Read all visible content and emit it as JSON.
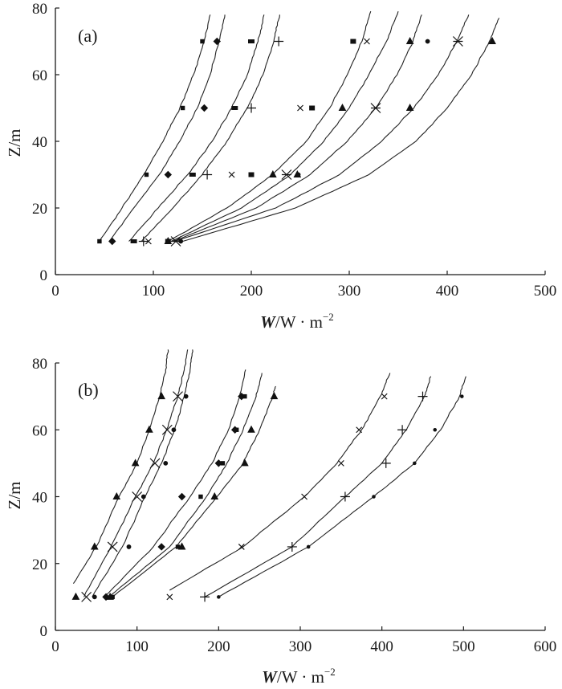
{
  "chart_data": [
    {
      "type": "line",
      "panel_label": "(a)",
      "xlabel_var": "W",
      "xlabel_unit": "/W · m",
      "xlabel_exp": "−2",
      "ylabel": "Z/m",
      "xlim": [
        0,
        500
      ],
      "ylim": [
        0,
        80
      ],
      "xticks": [
        "0",
        "100",
        "200",
        "300",
        "400",
        "500"
      ],
      "yticks": [
        "0",
        "20",
        "40",
        "60",
        "80"
      ],
      "series": [
        {
          "marker": "square-small",
          "points": [
            [
              45,
              10
            ],
            [
              93,
              30
            ],
            [
              130,
              50
            ],
            [
              150,
              70
            ]
          ],
          "curve": [
            [
              45,
              10
            ],
            [
              68,
              20
            ],
            [
              90,
              30
            ],
            [
              110,
              40
            ],
            [
              127,
              50
            ],
            [
              141,
              60
            ],
            [
              152,
              70
            ],
            [
              158,
              78
            ]
          ]
        },
        {
          "marker": "diamond",
          "points": [
            [
              58,
              10
            ],
            [
              115,
              30
            ],
            [
              152,
              50
            ],
            [
              165,
              70
            ]
          ],
          "curve": [
            [
              55,
              10
            ],
            [
              80,
              20
            ],
            [
              106,
              30
            ],
            [
              127,
              40
            ],
            [
              145,
              50
            ],
            [
              158,
              60
            ],
            [
              167,
              70
            ],
            [
              173,
              78
            ]
          ]
        },
        {
          "marker": "dash",
          "points": [
            [
              80,
              10
            ],
            [
              140,
              30
            ],
            [
              183,
              50
            ],
            [
              200,
              70
            ]
          ],
          "curve": [
            [
              75,
              10
            ],
            [
              105,
              20
            ],
            [
              135,
              30
            ],
            [
              160,
              40
            ],
            [
              180,
              50
            ],
            [
              196,
              60
            ],
            [
              207,
              70
            ],
            [
              213,
              78
            ]
          ]
        },
        {
          "marker": "plus",
          "points": [
            [
              90,
              10
            ],
            [
              155,
              30
            ],
            [
              200,
              50
            ],
            [
              228,
              70
            ]
          ],
          "curve": [
            [
              88,
              10
            ],
            [
              120,
              20
            ],
            [
              150,
              30
            ],
            [
              175,
              40
            ],
            [
              196,
              50
            ],
            [
              212,
              60
            ],
            [
              223,
              70
            ],
            [
              229,
              78
            ]
          ]
        },
        {
          "marker": "x-small",
          "points": [
            [
              95,
              10
            ],
            [
              180,
              30
            ],
            [
              250,
              50
            ],
            [
              318,
              70
            ]
          ],
          "curve": [
            [
              115,
              10
            ],
            [
              175,
              20
            ],
            [
              222,
              30
            ],
            [
              256,
              40
            ],
            [
              280,
              50
            ],
            [
              298,
              60
            ],
            [
              313,
              70
            ],
            [
              322,
              79
            ]
          ]
        },
        {
          "marker": "square-med",
          "points": [
            [
              115,
              10
            ],
            [
              200,
              30
            ],
            [
              262,
              50
            ],
            [
              304,
              70
            ]
          ],
          "curve": [
            [
              118,
              10
            ],
            [
              190,
              20
            ],
            [
              240,
              30
            ],
            [
              274,
              40
            ],
            [
              300,
              50
            ],
            [
              320,
              60
            ],
            [
              338,
              70
            ],
            [
              350,
              79
            ]
          ]
        },
        {
          "marker": "triangle",
          "points": [
            [
              115,
              10
            ],
            [
              222,
              30
            ],
            [
              293,
              50
            ],
            [
              362,
              50
            ],
            [
              362,
              70
            ],
            [
              446,
              70
            ],
            [
              247,
              30
            ]
          ],
          "curve": [
            [
              120,
              10
            ],
            [
              205,
              20
            ],
            [
              260,
              30
            ],
            [
              298,
              40
            ],
            [
              327,
              50
            ],
            [
              349,
              60
            ],
            [
              365,
              70
            ],
            [
              374,
              78
            ]
          ]
        },
        {
          "marker": "asterisk",
          "points": [
            [
              123,
              10
            ],
            [
              236,
              30
            ],
            [
              327,
              50
            ],
            [
              411,
              70
            ]
          ],
          "curve": [
            [
              122,
              10
            ],
            [
              225,
              20
            ],
            [
              290,
              30
            ],
            [
              333,
              40
            ],
            [
              366,
              50
            ],
            [
              391,
              60
            ],
            [
              410,
              70
            ],
            [
              422,
              78
            ]
          ]
        },
        {
          "marker": "dot",
          "points": [
            [
              128,
              10
            ],
            [
              248,
              30
            ],
            [
              380,
              70
            ]
          ],
          "curve": [
            [
              130,
              10
            ],
            [
              245,
              20
            ],
            [
              320,
              30
            ],
            [
              368,
              40
            ],
            [
              400,
              50
            ],
            [
              425,
              60
            ],
            [
              443,
              70
            ],
            [
              453,
              77
            ]
          ]
        }
      ]
    },
    {
      "type": "line",
      "panel_label": "(b)",
      "xlabel_var": "W",
      "xlabel_unit": "/W · m",
      "xlabel_exp": "−2",
      "ylabel": "Z/m",
      "xlim": [
        0,
        600
      ],
      "ylim": [
        0,
        80
      ],
      "xticks": [
        "0",
        "100",
        "200",
        "300",
        "400",
        "500",
        "600"
      ],
      "yticks": [
        "0",
        "20",
        "40",
        "60",
        "80"
      ],
      "series": [
        {
          "marker": "triangle",
          "points": [
            [
              25,
              10
            ],
            [
              48,
              25
            ],
            [
              75,
              40
            ],
            [
              98,
              50
            ],
            [
              115,
              60
            ],
            [
              130,
              70
            ]
          ],
          "curve": [
            [
              22,
              14
            ],
            [
              50,
              25
            ],
            [
              78,
              40
            ],
            [
              100,
              50
            ],
            [
              115,
              60
            ],
            [
              128,
              70
            ],
            [
              135,
              78
            ],
            [
              138,
              84
            ]
          ]
        },
        {
          "marker": "x-large",
          "points": [
            [
              38,
              10
            ],
            [
              70,
              25
            ],
            [
              100,
              40
            ],
            [
              122,
              50
            ],
            [
              137,
              60
            ],
            [
              150,
              70
            ]
          ],
          "curve": [
            [
              35,
              10
            ],
            [
              68,
              25
            ],
            [
              98,
              40
            ],
            [
              120,
              50
            ],
            [
              136,
              60
            ],
            [
              150,
              70
            ],
            [
              158,
              78
            ],
            [
              162,
              84
            ]
          ]
        },
        {
          "marker": "dot",
          "points": [
            [
              48,
              10
            ],
            [
              90,
              25
            ],
            [
              108,
              40
            ],
            [
              135,
              50
            ],
            [
              145,
              60
            ],
            [
              160,
              70
            ]
          ],
          "curve": [
            [
              45,
              10
            ],
            [
              82,
              25
            ],
            [
              110,
              40
            ],
            [
              130,
              50
            ],
            [
              146,
              60
            ],
            [
              158,
              70
            ],
            [
              165,
              78
            ],
            [
              168,
              84
            ]
          ]
        },
        {
          "marker": "diamond",
          "points": [
            [
              62,
              10
            ],
            [
              130,
              25
            ],
            [
              155,
              40
            ],
            [
              200,
              50
            ],
            [
              220,
              60
            ],
            [
              228,
              70
            ]
          ],
          "curve": [
            [
              60,
              10
            ],
            [
              120,
              25
            ],
            [
              165,
              40
            ],
            [
              192,
              50
            ],
            [
              212,
              60
            ],
            [
              226,
              70
            ],
            [
              233,
              78
            ]
          ]
        },
        {
          "marker": "square-small",
          "points": [
            [
              70,
              10
            ],
            [
              150,
              25
            ],
            [
              178,
              40
            ],
            [
              205,
              50
            ],
            [
              222,
              60
            ],
            [
              232,
              70
            ]
          ],
          "curve": [
            [
              65,
              10
            ],
            [
              140,
              25
            ],
            [
              185,
              40
            ],
            [
              210,
              50
            ],
            [
              230,
              60
            ],
            [
              246,
              70
            ],
            [
              253,
              77
            ]
          ]
        },
        {
          "marker": "triangle-b",
          "points": [
            [
              67,
              10
            ],
            [
              155,
              25
            ],
            [
              195,
              40
            ],
            [
              232,
              50
            ],
            [
              240,
              60
            ],
            [
              268,
              70
            ]
          ],
          "curve": [
            [
              70,
              10
            ],
            [
              148,
              25
            ],
            [
              198,
              40
            ],
            [
              230,
              50
            ],
            [
              250,
              60
            ],
            [
              266,
              70
            ],
            [
              270,
              73
            ]
          ]
        },
        {
          "marker": "x-small",
          "points": [
            [
              140,
              10
            ],
            [
              228,
              25
            ],
            [
              305,
              40
            ],
            [
              350,
              50
            ],
            [
              372,
              60
            ],
            [
              403,
              70
            ]
          ],
          "curve": [
            [
              140,
              12
            ],
            [
              230,
              25
            ],
            [
              305,
              40
            ],
            [
              345,
              50
            ],
            [
              375,
              60
            ],
            [
              398,
              70
            ],
            [
              410,
              77
            ]
          ]
        },
        {
          "marker": "plus",
          "points": [
            [
              183,
              10
            ],
            [
              290,
              25
            ],
            [
              355,
              40
            ],
            [
              405,
              50
            ],
            [
              425,
              60
            ],
            [
              450,
              70
            ]
          ],
          "curve": [
            [
              183,
              10
            ],
            [
              290,
              25
            ],
            [
              355,
              40
            ],
            [
              400,
              50
            ],
            [
              430,
              60
            ],
            [
              452,
              70
            ],
            [
              460,
              76
            ]
          ]
        },
        {
          "marker": "dot-small",
          "points": [
            [
              200,
              10
            ],
            [
              310,
              25
            ],
            [
              390,
              40
            ],
            [
              440,
              50
            ],
            [
              465,
              60
            ],
            [
              498,
              70
            ]
          ],
          "curve": [
            [
              200,
              10
            ],
            [
              310,
              25
            ],
            [
              390,
              40
            ],
            [
              440,
              50
            ],
            [
              472,
              60
            ],
            [
              495,
              70
            ],
            [
              503,
              76
            ]
          ]
        }
      ]
    }
  ]
}
